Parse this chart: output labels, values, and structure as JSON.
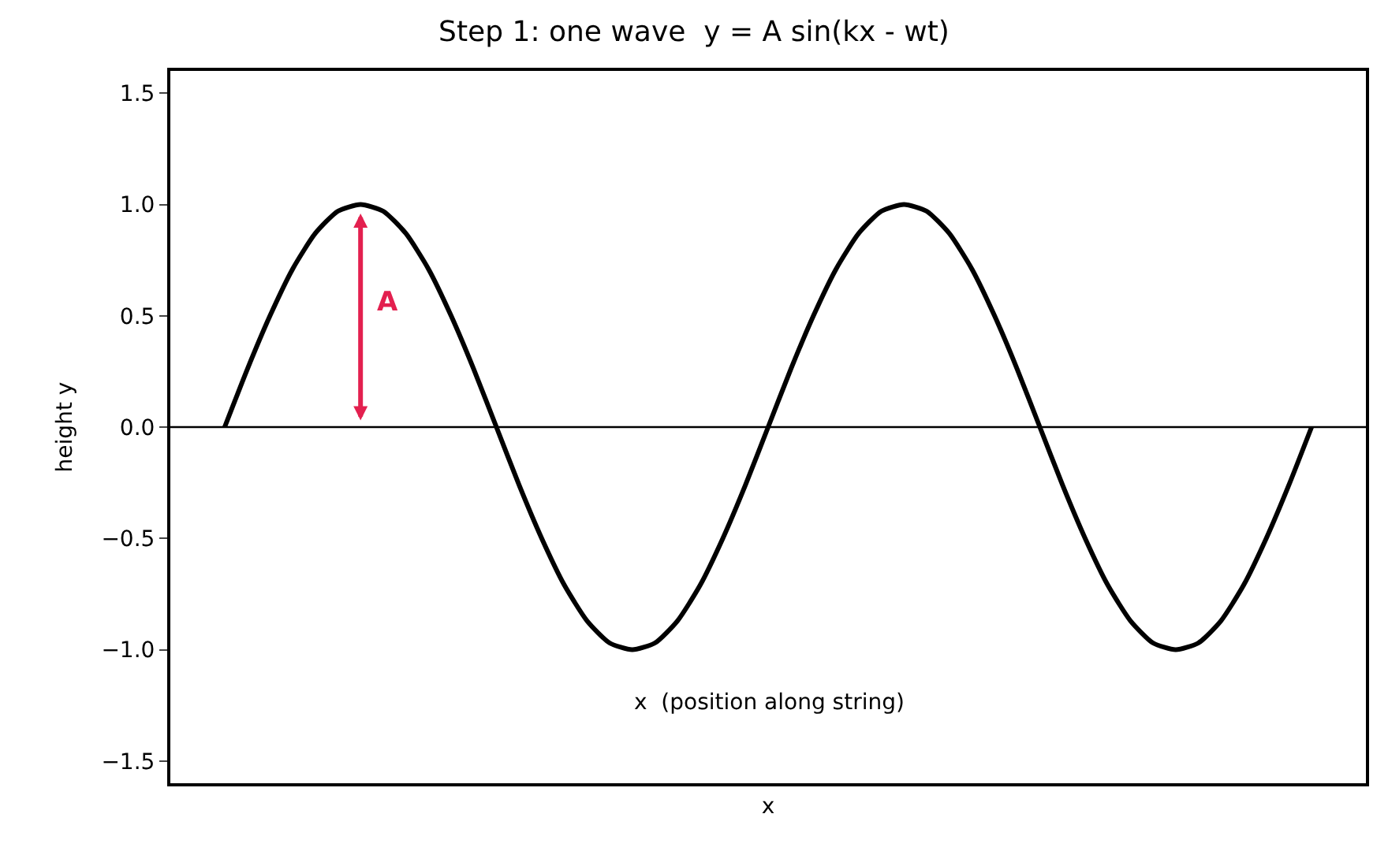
{
  "chart_data": {
    "type": "line",
    "title": "Step 1: one wave  y = A sin(kx - wt)",
    "xlabel": "x",
    "ylabel": "height y",
    "categories": [
      null,
      null,
      null,
      null,
      null,
      null,
      null,
      null,
      null,
      null,
      null,
      null,
      null,
      null,
      null,
      null,
      null,
      null,
      null,
      null,
      null,
      null,
      null,
      null,
      null,
      null,
      null,
      null,
      null,
      null,
      null,
      null,
      null,
      null,
      null,
      null,
      null,
      null,
      null,
      null,
      null,
      null,
      null,
      null,
      null,
      null,
      null,
      null,
      null
    ],
    "series": [
      {
        "color": "#000000",
        "values": [
          0,
          0.26,
          0.5,
          0.71,
          0.87,
          0.97,
          1,
          0.97,
          0.87,
          0.71,
          0.5,
          0.26,
          0,
          -0.26,
          -0.5,
          -0.71,
          -0.87,
          -0.97,
          -1,
          -0.97,
          -0.87,
          -0.71,
          -0.5,
          -0.26,
          0,
          0.26,
          0.5,
          0.71,
          0.87,
          0.97,
          1,
          0.97,
          0.87,
          0.71,
          0.5,
          0.26,
          0,
          -0.26,
          -0.5,
          -0.71,
          -0.87,
          -0.97,
          -1,
          -0.97,
          -0.87,
          -0.71,
          -0.5,
          -0.26,
          0
        ]
      }
    ],
    "ylim": [
      -1.6,
      1.6
    ],
    "yticks": [
      {
        "value": -1.5,
        "label": "−1.5"
      },
      {
        "value": -1.0,
        "label": "−1.0"
      },
      {
        "value": -0.5,
        "label": "−0.5"
      },
      {
        "value": 0,
        "label": "0.0"
      },
      {
        "value": 0.5,
        "label": "0.5"
      },
      {
        "value": 1.0,
        "label": "1.0"
      },
      {
        "value": 1.5,
        "label": "1.5"
      }
    ],
    "tick_labels": "y",
    "ref_lines": [
      {
        "axis": "y",
        "value": 0,
        "color": "#000000"
      }
    ],
    "annotations": [
      "A",
      "x  (position along string)"
    ],
    "marker": "none",
    "line_style": "solid"
  }
}
